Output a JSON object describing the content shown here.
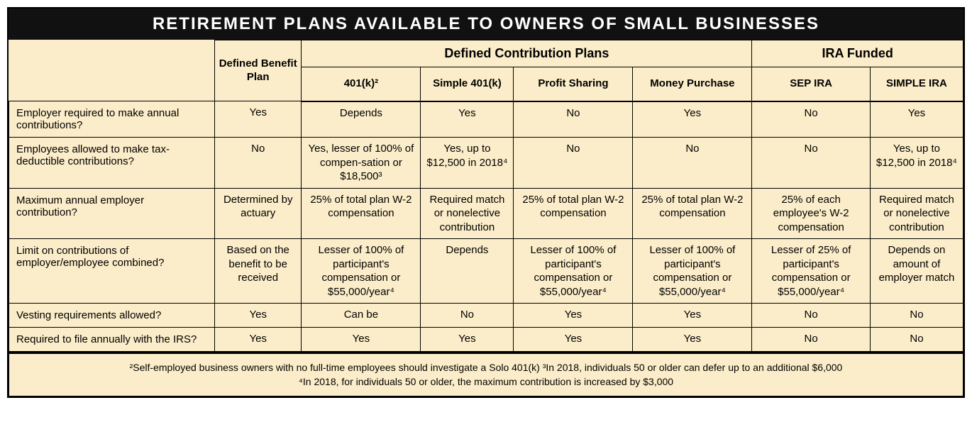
{
  "title": "RETIREMENT PLANS AVAILABLE TO OWNERS OF SMALL BUSINESSES",
  "colors": {
    "header_bg": "#111111",
    "header_fg": "#ffffff",
    "cell_bg": "#fbedc9",
    "border": "#000000"
  },
  "column_groups": [
    {
      "label": "Defined Benefit Plan",
      "span": 1
    },
    {
      "label": "Defined Contribution Plans",
      "span": 4
    },
    {
      "label": "IRA Funded",
      "span": 2
    }
  ],
  "sub_columns": [
    "401(k)²",
    "Simple 401(k)",
    "Profit Sharing",
    "Money Purchase",
    "SEP IRA",
    "SIMPLE IRA"
  ],
  "rows": [
    {
      "label": "Employer required to make annual contributions?",
      "cells": [
        "Yes",
        "Depends",
        "Yes",
        "No",
        "Yes",
        "No",
        "Yes"
      ]
    },
    {
      "label": "Employees allowed to make tax-deductible contributions?",
      "cells": [
        "No",
        "Yes, lesser of 100% of compen-sation or $18,500³",
        "Yes, up to $12,500 in 2018⁴",
        "No",
        "No",
        "No",
        "Yes, up to $12,500 in 2018⁴"
      ]
    },
    {
      "label": "Maximum annual employer contribution?",
      "cells": [
        "Determined by actuary",
        "25% of total plan W-2 compensation",
        "Required match or nonelective contribution",
        "25% of total plan W-2 compensation",
        "25% of total plan W-2 compensation",
        "25% of each employee's W-2 compensation",
        "Required match or nonelective contribution"
      ]
    },
    {
      "label": "Limit on contributions of employer/employee combined?",
      "cells": [
        "Based on the benefit to be received",
        "Lesser of 100% of participant's compensation or $55,000/year⁴",
        "Depends",
        "Lesser of 100% of participant's compensation or $55,000/year⁴",
        "Lesser of 100% of participant's compensation or $55,000/year⁴",
        "Lesser of 25% of participant's compensation or $55,000/year⁴",
        "Depends on amount of employer match"
      ]
    },
    {
      "label": "Vesting requirements allowed?",
      "cells": [
        "Yes",
        "Can be",
        "No",
        "Yes",
        "Yes",
        "No",
        "No"
      ]
    },
    {
      "label": "Required to file annually with the IRS?",
      "cells": [
        "Yes",
        "Yes",
        "Yes",
        "Yes",
        "Yes",
        "No",
        "No"
      ]
    }
  ],
  "footnotes": [
    "²Self-employed business owners with no full-time employees should investigate a Solo 401(k)  ³In 2018, individuals 50 or older can defer up to an additional $6,000",
    "⁴In 2018, for individuals 50 or older, the maximum contribution is increased by $3,000"
  ]
}
